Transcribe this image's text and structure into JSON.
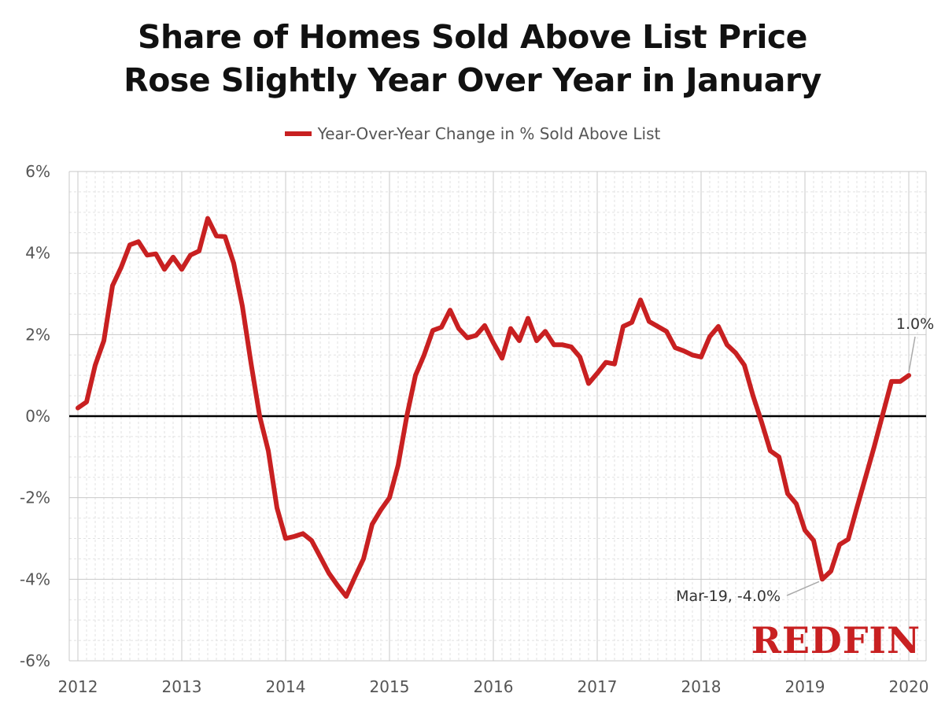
{
  "title_lines": [
    "Share of Homes Sold Above List Price",
    "Rose Slightly Year Over Year in January"
  ],
  "legend_label": "Year-Over-Year Change in % Sold Above List",
  "brand": "REDFIN",
  "colors": {
    "series": "#c82021",
    "zero_line": "#000000",
    "grid": "#cccccc",
    "brand": "#c82021"
  },
  "chart_data": {
    "type": "line",
    "title": "Share of Homes Sold Above List Price Rose Slightly Year Over Year in January",
    "xlabel": "",
    "ylabel": "",
    "x_ticks": [
      "2012",
      "2013",
      "2014",
      "2015",
      "2016",
      "2017",
      "2018",
      "2019",
      "2020"
    ],
    "y_ticks": [
      "6%",
      "4%",
      "2%",
      "0%",
      "-2%",
      "-4%",
      "-6%"
    ],
    "ylim": [
      -6,
      6
    ],
    "xlim": [
      "2011-12",
      "2020-03"
    ],
    "grid": true,
    "legend_position": "top-center",
    "series": [
      {
        "name": "Year-Over-Year Change in % Sold Above List",
        "start": "2012-01",
        "frequency": "monthly",
        "values": [
          0.2,
          0.35,
          1.25,
          1.85,
          3.2,
          3.65,
          4.2,
          4.28,
          3.95,
          3.98,
          3.6,
          3.9,
          3.6,
          3.95,
          4.05,
          4.85,
          4.42,
          4.4,
          3.75,
          2.7,
          1.3,
          0.0,
          -0.85,
          -2.25,
          -3.0,
          -2.95,
          -2.88,
          -3.05,
          -3.45,
          -3.85,
          -4.15,
          -4.42,
          -3.95,
          -3.5,
          -2.65,
          -2.3,
          -2.0,
          -1.2,
          0.0,
          1.0,
          1.5,
          2.1,
          2.18,
          2.6,
          2.15,
          1.92,
          1.98,
          2.22,
          1.8,
          1.42,
          2.15,
          1.85,
          2.4,
          1.85,
          2.08,
          1.75,
          1.75,
          1.7,
          1.45,
          0.8,
          1.05,
          1.32,
          1.28,
          2.2,
          2.3,
          2.85,
          2.32,
          2.2,
          2.08,
          1.68,
          1.6,
          1.5,
          1.45,
          1.95,
          2.2,
          1.75,
          1.55,
          1.25,
          0.5,
          -0.15,
          -0.85,
          -1.0,
          -1.9,
          -2.15,
          -2.8,
          -3.05,
          -4.0,
          -3.8,
          -3.15,
          -3.02,
          -2.25,
          -1.5,
          -0.75,
          0.05,
          0.85,
          0.85,
          1.0
        ]
      }
    ],
    "annotations": [
      {
        "label": "1.0%",
        "x": "2020-01",
        "y": 1.0
      },
      {
        "label": "Mar-19, -4.0%",
        "x": "2019-03",
        "y": -4.0
      }
    ]
  }
}
